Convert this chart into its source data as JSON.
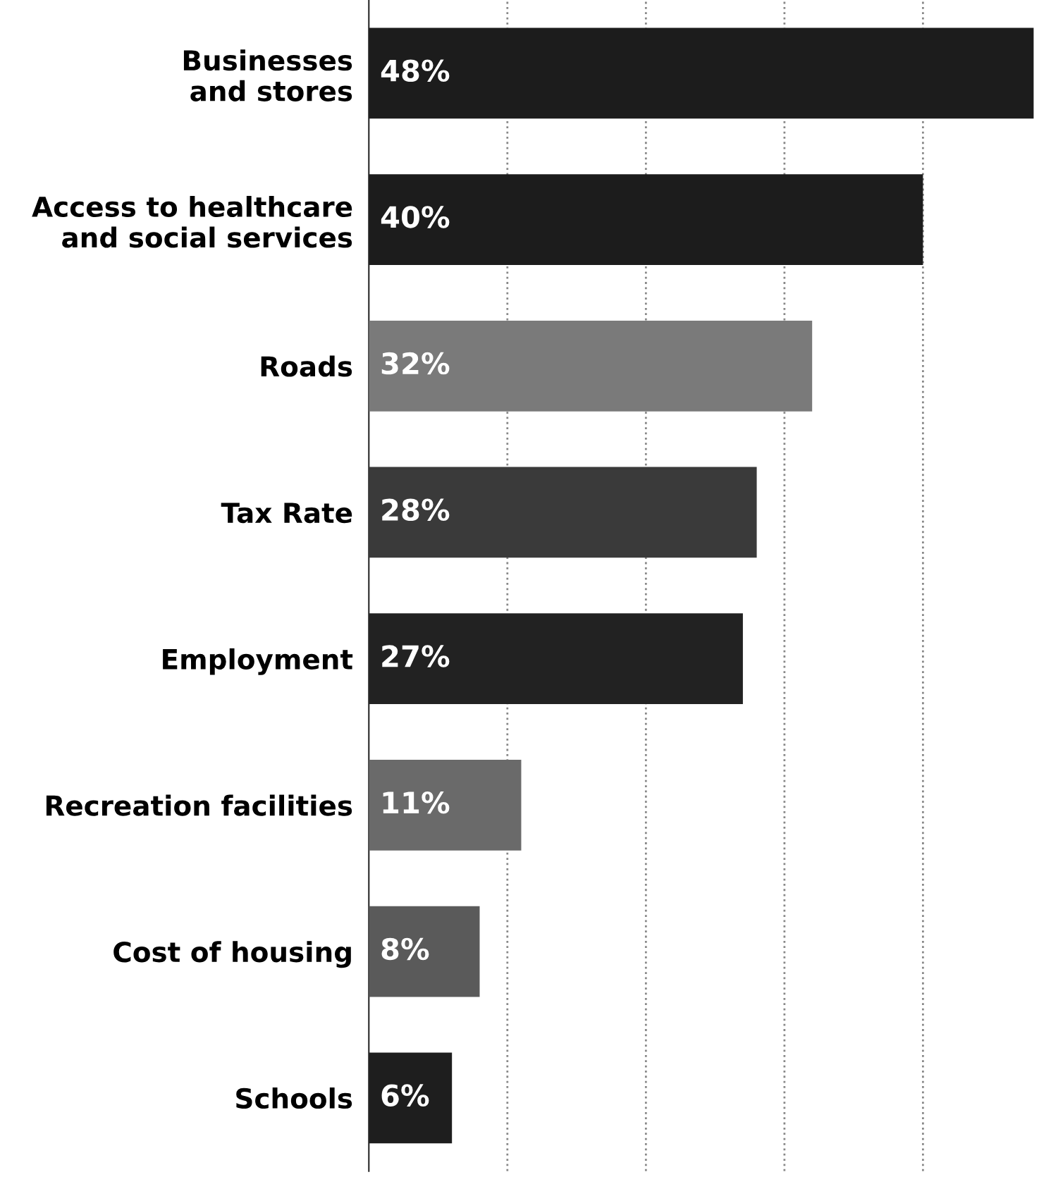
{
  "chart_data": {
    "type": "bar",
    "orientation": "horizontal",
    "categories": [
      "Businesses\nand stores",
      "Access to healthcare\nand social services",
      "Roads",
      "Tax Rate",
      "Employment",
      "Recreation facilities",
      "Cost of housing",
      "Schools"
    ],
    "values": [
      48,
      40,
      32,
      28,
      27,
      11,
      8,
      6
    ],
    "colors": [
      "#1c1c1c",
      "#1c1c1c",
      "#7a7a7a",
      "#3a3a3a",
      "#222222",
      "#6a6a6a",
      "#5a5a5a",
      "#1e1e1e"
    ],
    "value_labels": [
      "48%",
      "40%",
      "32%",
      "28%",
      "27%",
      "11%",
      "8%",
      "6%"
    ],
    "xlim": [
      0,
      48
    ],
    "xticks": [
      {
        "value": 10,
        "label": null
      },
      {
        "value": 20,
        "label": null
      },
      {
        "value": 30,
        "label": null
      },
      {
        "value": 40,
        "label": null
      }
    ],
    "tick_labels": "y",
    "grid": "x",
    "legend": false
  }
}
